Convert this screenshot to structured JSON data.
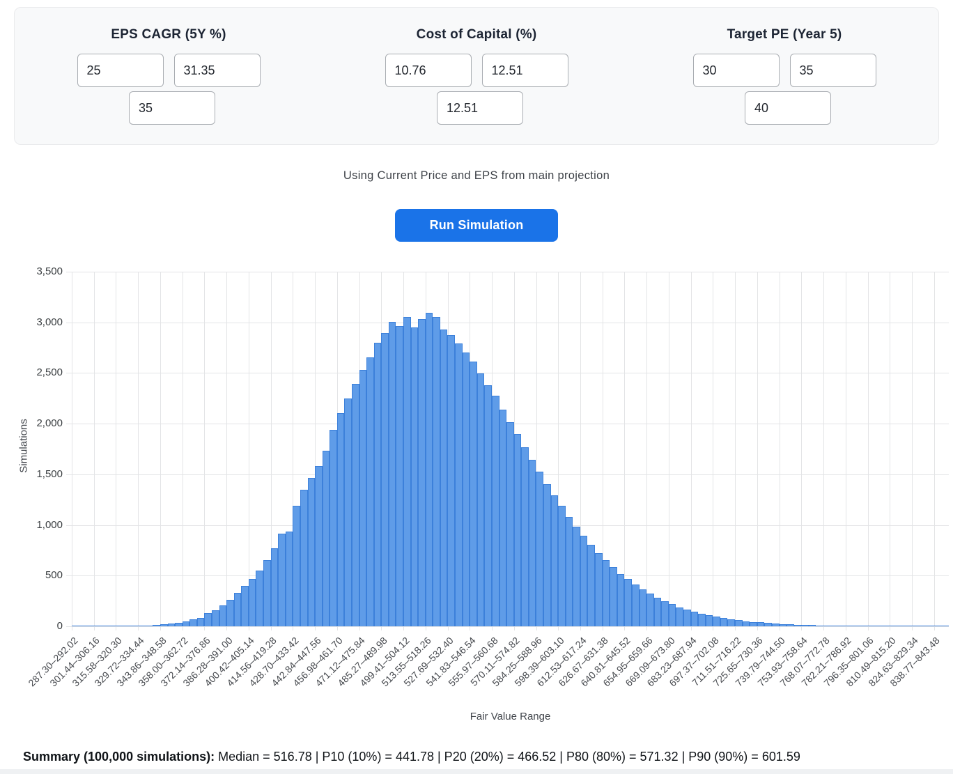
{
  "params": {
    "groups": [
      {
        "label": "EPS CAGR (5Y %)",
        "inputs": [
          "25",
          "31.35",
          "35"
        ]
      },
      {
        "label": "Cost of Capital (%)",
        "inputs": [
          "10.76",
          "12.51",
          "12.51"
        ]
      },
      {
        "label": "Target PE (Year 5)",
        "inputs": [
          "30",
          "35",
          "40"
        ]
      }
    ]
  },
  "note": "Using Current Price and EPS from main projection",
  "run_button_label": "Run Simulation",
  "chart_data": {
    "type": "bar",
    "title": "",
    "xlabel": "Fair Value Range",
    "ylabel": "Simulations",
    "ylim": [
      0,
      3500
    ],
    "y_tick_step": 500,
    "y_ticks": [
      "0",
      "500",
      "1,000",
      "1,500",
      "2,000",
      "2,500",
      "3,000",
      "3,500"
    ],
    "grid": true,
    "bin_start": 287.3,
    "bin_width": 4.71,
    "x_max": 843.48,
    "label_every_n_bins": 3,
    "x_tick_labels": [
      "287.30–292.02",
      "301.44–306.16",
      "315.58–320.30",
      "329.72–334.44",
      "343.86–348.58",
      "358.00–362.72",
      "372.14–376.86",
      "386.28–391.00",
      "400.42–405.14",
      "414.56–419.28",
      "428.70–433.42",
      "442.84–447.56",
      "456.98–461.70",
      "471.12–475.84",
      "485.27–489.98",
      "499.41–504.12",
      "513.55–518.26",
      "527.69–532.40",
      "541.83–546.54",
      "555.97–560.68",
      "570.11–574.82",
      "584.25–588.96",
      "598.39–603.10",
      "612.53–617.24",
      "626.67–631.38",
      "640.81–645.52",
      "654.95–659.66",
      "669.09–673.80",
      "683.23–687.94",
      "697.37–702.08",
      "711.51–716.22",
      "725.65–730.36",
      "739.79–744.50",
      "753.93–758.64",
      "768.07–772.78",
      "782.21–786.92",
      "796.35–801.06",
      "810.49–815.20",
      "824.63–829.34",
      "838.77–843.48"
    ],
    "counts": [
      1,
      1,
      1,
      2,
      2,
      2,
      3,
      4,
      5,
      6,
      9,
      13,
      18,
      25,
      35,
      49,
      66,
      86,
      130,
      158,
      205,
      262,
      330,
      400,
      470,
      552,
      655,
      770,
      918,
      935,
      1190,
      1350,
      1465,
      1580,
      1731,
      1940,
      2107,
      2248,
      2395,
      2532,
      2654,
      2800,
      2893,
      3007,
      2965,
      3050,
      2950,
      3030,
      3094,
      3050,
      2930,
      2873,
      2790,
      2700,
      2616,
      2495,
      2380,
      2274,
      2140,
      2015,
      1900,
      1765,
      1642,
      1529,
      1405,
      1290,
      1190,
      1080,
      983,
      896,
      805,
      725,
      655,
      582,
      519,
      466,
      410,
      363,
      323,
      282,
      248,
      219,
      189,
      165,
      145,
      124,
      107,
      94,
      80,
      68,
      60,
      50,
      44,
      38,
      32,
      27,
      23,
      19,
      16,
      14,
      11,
      10,
      8,
      7,
      6,
      5,
      4,
      3,
      3,
      2,
      2,
      2,
      1,
      1,
      1,
      1,
      1,
      1,
      1
    ],
    "bar_color": "#5f9ce8",
    "bar_border_color": "#3c80da",
    "legend": "none"
  },
  "summary": {
    "label": "Summary (100,000 simulations):",
    "text": " Median = 516.78 | P10 (10%) = 441.78 | P20 (20%) = 466.52 | P80 (80%) = 571.32 | P90 (90%) = 601.59"
  }
}
